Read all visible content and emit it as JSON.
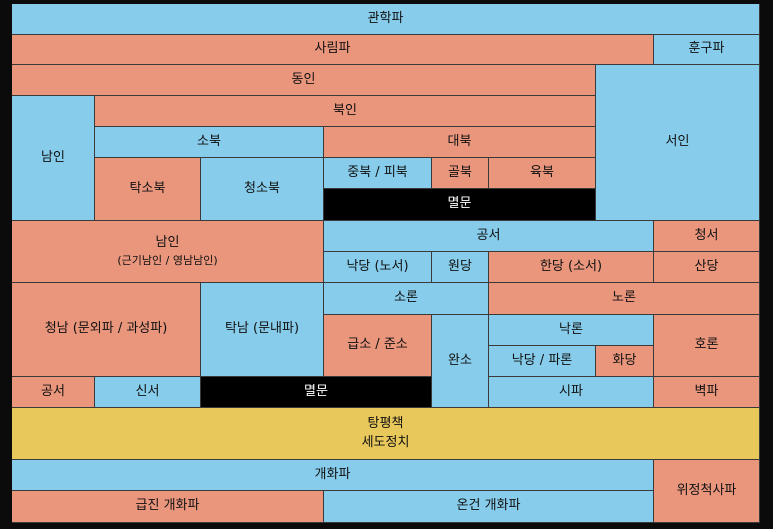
{
  "colors": {
    "blue": "#87cdeb",
    "salmon": "#e9967d",
    "black": "#000000",
    "yellow": "#e8c85a"
  },
  "cells": {
    "gwanhakpa": "관학파",
    "sarimpa": "사림파",
    "hungupa": "훈구파",
    "dongin": "동인",
    "seoin": "서인",
    "bugin": "북인",
    "namin_left": "남인",
    "sobuk": "소북",
    "daebuk": "대북",
    "takso_buk": "탁소북",
    "cheongso_buk": "청소북",
    "jungbuk_pibuk": "중북 / 피북",
    "golbuk": "골북",
    "yukbuk": "육북",
    "myeolmun_top": "멸문",
    "namin_mid": "남인",
    "namin_mid_sub": "(근기남인 / 영남남인)",
    "gongseo_top": "공서",
    "cheongseo": "청서",
    "nakdang_noseo": "낙당 (노서)",
    "wondang": "원당",
    "handang_soseo": "한당 (소서)",
    "sandang": "산당",
    "soron": "소론",
    "noron": "노론",
    "cheongnam": "청남 (문외파 / 과성파)",
    "tangnam": "탁남 (문내파)",
    "geupso_junso": "급소 / 준소",
    "wanso": "완소",
    "nangnon": "낙론",
    "horon": "호론",
    "nakdang_paron": "낙당 / 파론",
    "hwadang": "화당",
    "gongseo_bottom": "공서",
    "sinseo": "신서",
    "myeolmun_bottom": "멸문",
    "sipa": "시파",
    "byeokpa": "벽파",
    "tangpyeong_line1": "탕평책",
    "tangpyeong_line2": "세도정치",
    "gaehwapa": "개화파",
    "wijeong": "위정척사파",
    "geupjin": "급진 개화파",
    "ongeon": "온건 개화파"
  }
}
